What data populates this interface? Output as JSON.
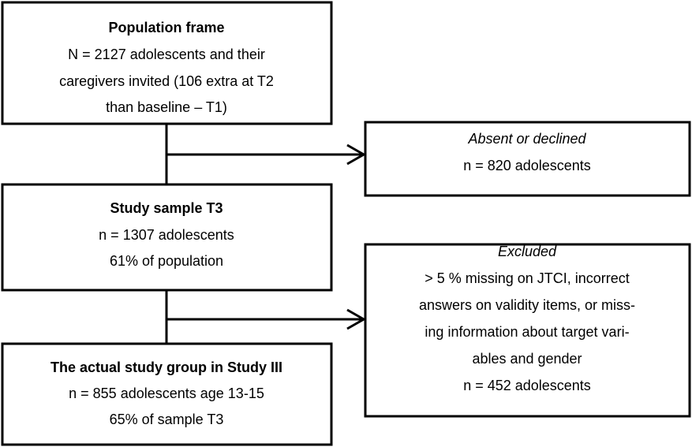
{
  "nodes": [
    {
      "title": "Population frame",
      "lines": [
        "N = 2127 adolescents and their",
        "caregivers invited (106 extra at T2",
        "than baseline – T1)"
      ]
    },
    {
      "title": "Absent or declined",
      "lines": [
        "n = 820 adolescents"
      ]
    },
    {
      "title": "Study sample T3",
      "lines": [
        "n = 1307 adolescents",
        "61% of population"
      ]
    },
    {
      "title": "Excluded",
      "lines": [
        "> 5 % missing on JTCI, incorrect",
        "answers on validity items, or miss-",
        "ing information about target vari-",
        "ables and gender",
        "n = 452 adolescents"
      ]
    },
    {
      "title": "The actual study group in Study III",
      "lines": [
        "n = 855 adolescents age 13-15",
        "65% of sample T3"
      ]
    }
  ]
}
